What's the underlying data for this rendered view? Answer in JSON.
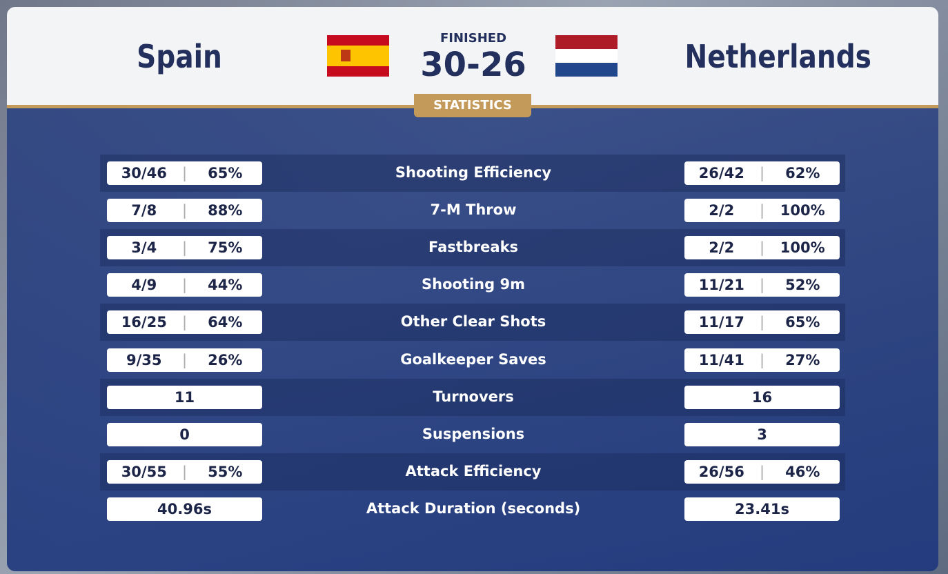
{
  "header": {
    "status": "FINISHED",
    "score": "30-26",
    "home_team": "Spain",
    "away_team": "Netherlands",
    "badge": "STATISTICS"
  },
  "table": {
    "rows": [
      {
        "label": "Shooting Efficiency",
        "home": [
          "30/46",
          "65%"
        ],
        "away": [
          "26/42",
          "62%"
        ]
      },
      {
        "label": "7-M Throw",
        "home": [
          "7/8",
          "88%"
        ],
        "away": [
          "2/2",
          "100%"
        ]
      },
      {
        "label": "Fastbreaks",
        "home": [
          "3/4",
          "75%"
        ],
        "away": [
          "2/2",
          "100%"
        ]
      },
      {
        "label": "Shooting 9m",
        "home": [
          "4/9",
          "44%"
        ],
        "away": [
          "11/21",
          "52%"
        ]
      },
      {
        "label": "Other Clear Shots",
        "home": [
          "16/25",
          "64%"
        ],
        "away": [
          "11/17",
          "65%"
        ]
      },
      {
        "label": "Goalkeeper Saves",
        "home": [
          "9/35",
          "26%"
        ],
        "away": [
          "11/41",
          "27%"
        ]
      },
      {
        "label": "Turnovers",
        "home": [
          "11"
        ],
        "away": [
          "16"
        ]
      },
      {
        "label": "Suspensions",
        "home": [
          "0"
        ],
        "away": [
          "3"
        ]
      },
      {
        "label": "Attack Efficiency",
        "home": [
          "30/55",
          "55%"
        ],
        "away": [
          "26/56",
          "46%"
        ]
      },
      {
        "label": "Attack Duration (seconds)",
        "home": [
          "40.96s"
        ],
        "away": [
          "23.41s"
        ]
      }
    ]
  }
}
